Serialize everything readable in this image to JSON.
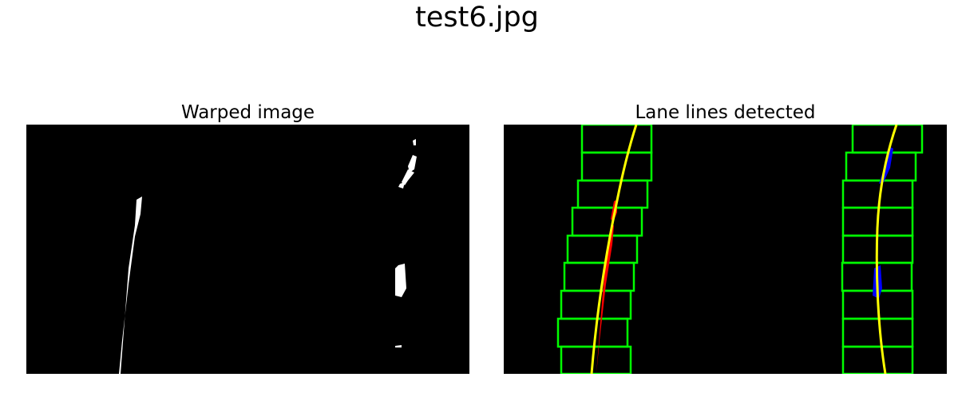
{
  "figure": {
    "title": "test6.jpg"
  },
  "panels": [
    {
      "title": "Warped image",
      "content": "binary thresholded bird's-eye view of lane pixels"
    },
    {
      "title": "Lane lines detected",
      "content": "sliding-window lane search with fitted polynomials"
    }
  ],
  "colors": {
    "background": "#000000",
    "lane_pixels": "#ffffff",
    "search_windows": "#00ff00",
    "left_lane_pixels": "#ff0000",
    "right_lane_pixels": "#0000ff",
    "fitted_curves": "#ffff00"
  }
}
